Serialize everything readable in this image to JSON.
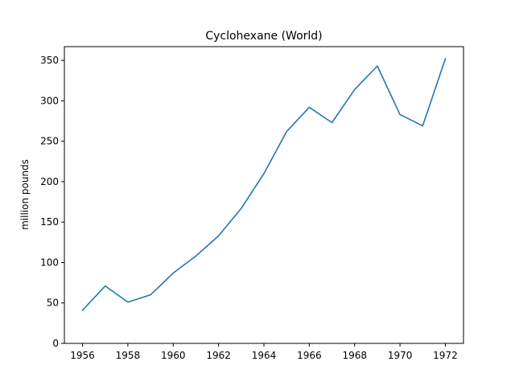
{
  "chart_data": {
    "type": "line",
    "title": "Cyclohexane (World)",
    "xlabel": "",
    "ylabel": "million pounds",
    "xlim": [
      1955.2,
      1972.8
    ],
    "ylim": [
      0,
      367
    ],
    "xticks": [
      1956,
      1958,
      1960,
      1962,
      1964,
      1966,
      1968,
      1970,
      1972
    ],
    "yticks": [
      0,
      50,
      100,
      150,
      200,
      250,
      300,
      350
    ],
    "grid": false,
    "legend": "none",
    "series": [
      {
        "color": "#1f77b4",
        "x": [
          1956,
          1957,
          1958,
          1959,
          1960,
          1961,
          1962,
          1963,
          1964,
          1965,
          1966,
          1967,
          1968,
          1969,
          1970,
          1971,
          1972
        ],
        "y": [
          41,
          71,
          51,
          60,
          87,
          108,
          133,
          167,
          210,
          262,
          292,
          273,
          314,
          343,
          283,
          269,
          352
        ]
      }
    ]
  }
}
